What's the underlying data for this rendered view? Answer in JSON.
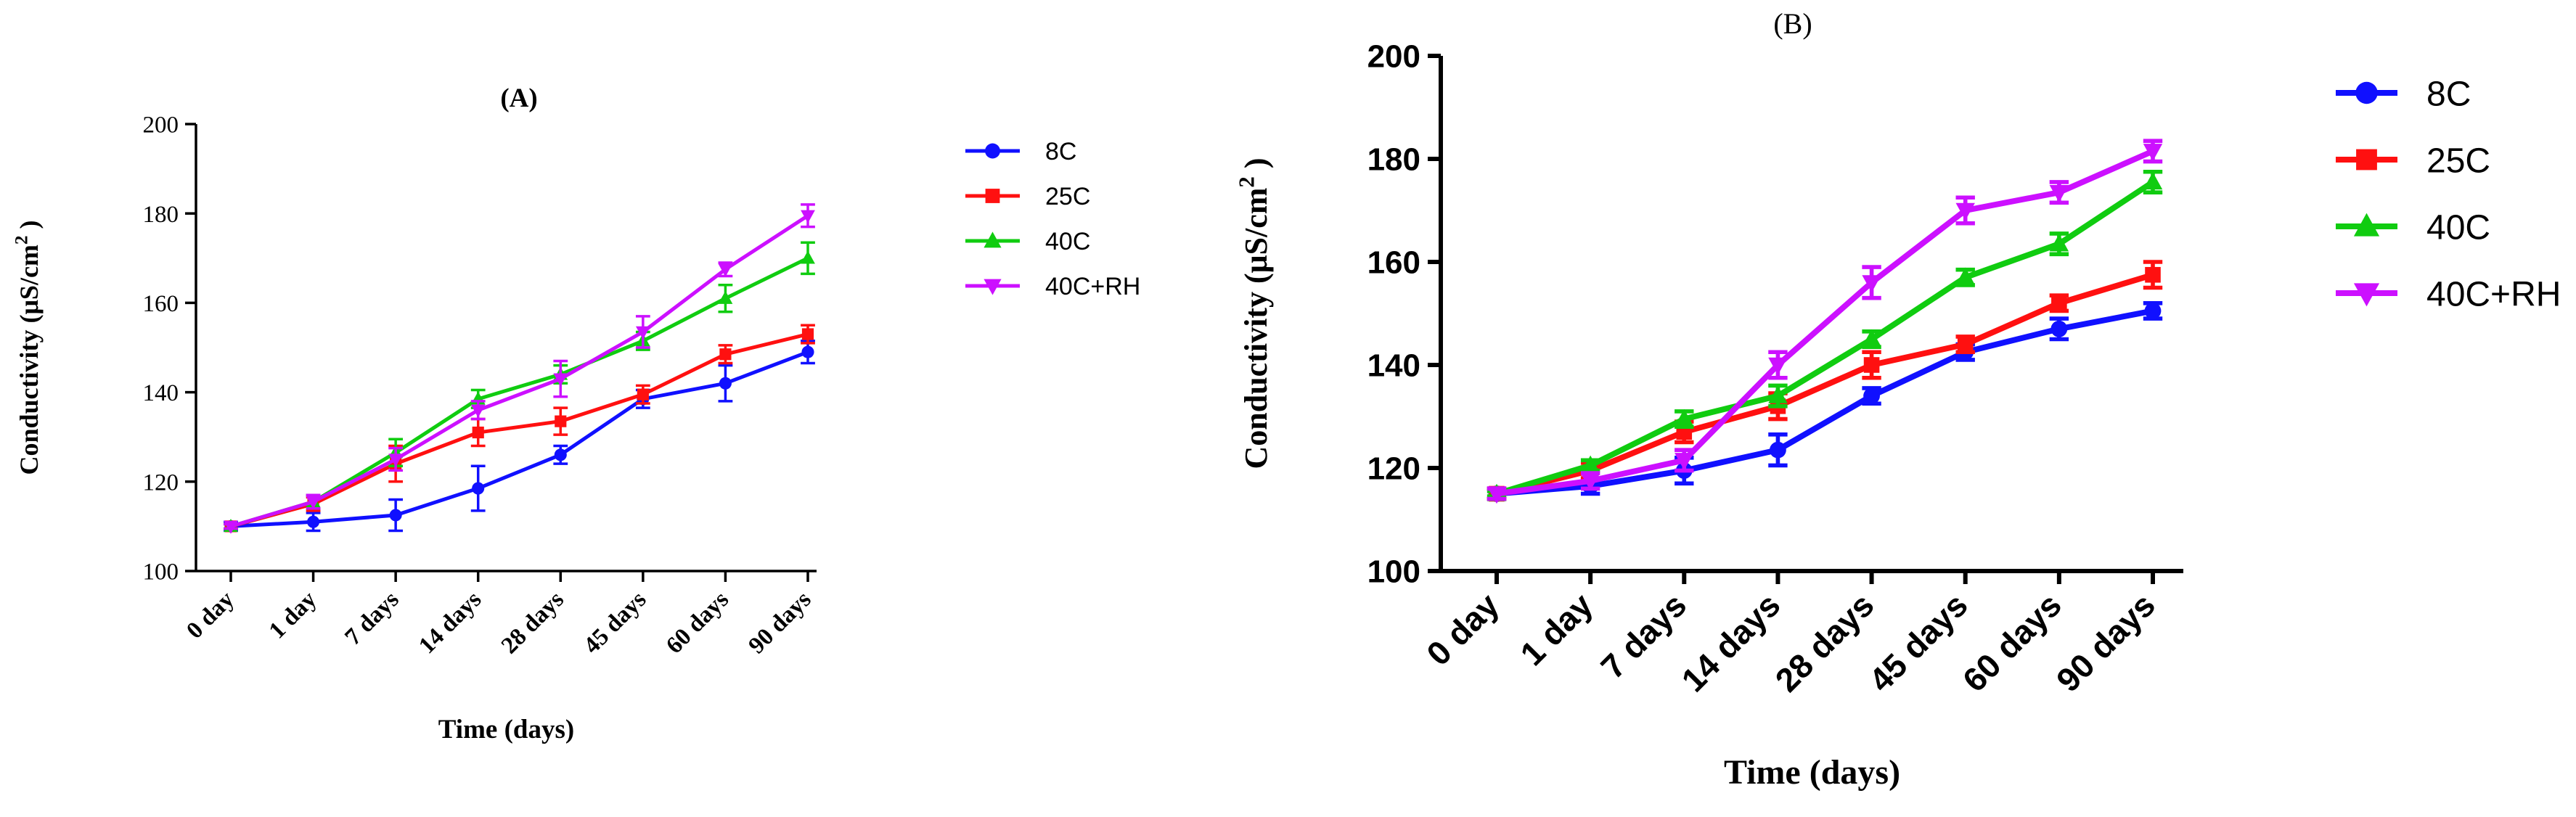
{
  "chart_data": [
    {
      "panel_label": "(A)",
      "type": "line",
      "categories": [
        "0 day",
        "1 day",
        "7 days",
        "14 days",
        "28 days",
        "45 days",
        "60 days",
        "90 days"
      ],
      "xlabel": "Time (days)",
      "ylabel": "Conductivity (μS/cm",
      "ylabel_superscript": "2",
      "ylabel_close": " )",
      "ylim": [
        100,
        200
      ],
      "yticks": [
        "100",
        "120",
        "140",
        "160",
        "180",
        "200"
      ],
      "legend_position": "right",
      "series": [
        {
          "name": "8C",
          "marker": "circle",
          "color": "#1010ff",
          "values": [
            110,
            111,
            112.5,
            118.5,
            126,
            138.5,
            142,
            149
          ],
          "errors": [
            1,
            2,
            3.5,
            5,
            2,
            2,
            4,
            2.5
          ]
        },
        {
          "name": "25C",
          "marker": "square",
          "color": "#ff1010",
          "values": [
            110,
            115,
            124,
            131,
            133.5,
            139.5,
            148.5,
            153
          ],
          "errors": [
            0.5,
            1.5,
            4,
            3,
            3,
            2,
            2,
            2
          ]
        },
        {
          "name": "40C",
          "marker": "triangle-up",
          "color": "#10cc10",
          "values": [
            110,
            115.5,
            126.5,
            138.5,
            144,
            151.5,
            161,
            170
          ],
          "errors": [
            0.5,
            1.5,
            3,
            2,
            2,
            2,
            3,
            3.5
          ]
        },
        {
          "name": "40C+RH",
          "marker": "triangle-down",
          "color": "#cc10ff",
          "values": [
            110,
            115.5,
            125,
            136,
            143,
            153.5,
            167.5,
            179.5
          ],
          "errors": [
            0.5,
            1.5,
            2.5,
            2,
            4,
            3.5,
            1.5,
            2.5
          ]
        }
      ]
    },
    {
      "panel_label": "(B)",
      "type": "line",
      "categories": [
        "0 day",
        "1 day",
        "7 days",
        "14 days",
        "28 days",
        "45 days",
        "60 days",
        "90 days"
      ],
      "xlabel": "Time (days)",
      "ylabel": "Conductivity (μS/cm",
      "ylabel_superscript": "2",
      "ylabel_close": " )",
      "ylim": [
        100,
        200
      ],
      "yticks": [
        "100",
        "120",
        "140",
        "160",
        "180",
        "200"
      ],
      "legend_position": "right",
      "series": [
        {
          "name": "8C",
          "marker": "circle",
          "color": "#1010ff",
          "values": [
            115,
            116.5,
            119.5,
            123.5,
            134,
            142.5,
            147,
            150.5
          ],
          "errors": [
            1,
            1.5,
            2.5,
            3,
            1.5,
            1.5,
            2,
            1.5
          ]
        },
        {
          "name": "25C",
          "marker": "square",
          "color": "#ff1010",
          "values": [
            115,
            119.5,
            127,
            132,
            140,
            144,
            152,
            157.5
          ],
          "errors": [
            1,
            1.5,
            2,
            2.5,
            2.5,
            1.5,
            1.5,
            2.5
          ]
        },
        {
          "name": "40C",
          "marker": "triangle-up",
          "color": "#10cc10",
          "values": [
            115,
            120.5,
            129.5,
            134,
            145,
            157,
            163.5,
            175.5
          ],
          "errors": [
            0.5,
            1,
            1.5,
            2,
            1.5,
            1.5,
            2,
            2
          ]
        },
        {
          "name": "40C+RH",
          "marker": "triangle-down",
          "color": "#cc10ff",
          "values": [
            115,
            117.5,
            121.5,
            140,
            156,
            170,
            173.5,
            181.5
          ],
          "errors": [
            1,
            1.5,
            2,
            2.5,
            3,
            2.5,
            2,
            2
          ]
        }
      ]
    }
  ]
}
